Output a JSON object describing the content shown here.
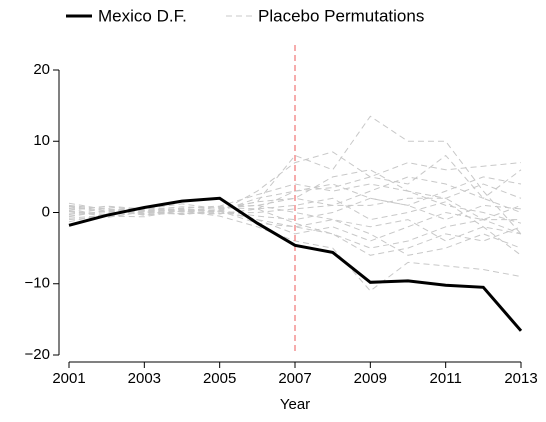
{
  "chart_data": {
    "type": "line",
    "x_label": "Year",
    "x": [
      2001,
      2002,
      2003,
      2004,
      2005,
      2006,
      2007,
      2008,
      2009,
      2010,
      2011,
      2012,
      2013
    ],
    "xlim": [
      2001,
      2013
    ],
    "xticks": [
      2001,
      2003,
      2005,
      2007,
      2009,
      2011,
      2013
    ],
    "ylim": [
      -20,
      20
    ],
    "yticks": [
      {
        "value": -20,
        "label": "−20"
      },
      {
        "value": -10,
        "label": "−10"
      },
      0,
      10,
      20
    ],
    "vline": {
      "x": 2007,
      "color": "#f08080"
    },
    "series": [
      {
        "name": "Mexico D.F.",
        "color": "#000000",
        "values": [
          -1.8,
          -0.4,
          0.7,
          1.6,
          2.0,
          -1.5,
          -4.6,
          -5.6,
          -9.8,
          -9.6,
          -10.2,
          -10.5,
          -16.6
        ]
      },
      {
        "name": "Placebo Permutations",
        "color": "#c8c8c8",
        "dashed": true,
        "lines": [
          [
            0.5,
            0.8,
            0.3,
            0.2,
            0.4,
            1.5,
            8,
            6,
            13.5,
            10,
            10,
            3,
            -3
          ],
          [
            -0.5,
            0.2,
            0.6,
            0.4,
            0.1,
            3,
            7,
            8.5,
            5,
            4,
            8,
            2,
            0
          ],
          [
            1,
            0.5,
            0.2,
            -0.3,
            0.2,
            2,
            3,
            3.5,
            5,
            7,
            6,
            6.5,
            7
          ],
          [
            -1,
            -0.6,
            0.1,
            0.5,
            0.3,
            -1,
            -2,
            -3,
            -5,
            -4,
            -2,
            -1,
            -3
          ],
          [
            0.2,
            -0.3,
            0.4,
            0.8,
            0.6,
            1,
            2,
            1,
            3,
            5,
            4,
            2,
            6
          ],
          [
            -0.3,
            0.6,
            -0.4,
            0.2,
            -0.5,
            -2,
            -4,
            -5,
            -11,
            -7,
            -7.5,
            -8,
            -9
          ],
          [
            0.8,
            0,
            -0.2,
            0.3,
            0.7,
            0.5,
            1,
            2,
            -1,
            0,
            1.5,
            -2,
            -6
          ],
          [
            -0.8,
            -0.4,
            0.3,
            0.1,
            0.3,
            -0.5,
            -1,
            0,
            2,
            1,
            3,
            5,
            4
          ],
          [
            0.3,
            0.9,
            0.5,
            0.2,
            -0.2,
            0.5,
            -1.5,
            -3,
            -6,
            -5,
            -3,
            -4,
            -2
          ],
          [
            -1.3,
            -0.2,
            0.2,
            0.6,
            0.9,
            2.5,
            4,
            3,
            4,
            3,
            1,
            0,
            -1.5
          ],
          [
            0.6,
            -0.7,
            0.1,
            -0.2,
            0.2,
            -1,
            -3,
            -2,
            -4,
            -2,
            0,
            -1,
            1
          ],
          [
            1.3,
            0.4,
            -0.1,
            0.5,
            -0.1,
            0,
            0.5,
            1,
            1,
            2,
            2,
            -1,
            -1
          ],
          [
            -0.2,
            0.1,
            0.5,
            1.2,
            0.5,
            1.5,
            2,
            5,
            6,
            3,
            2,
            4,
            2
          ],
          [
            0.1,
            -0.5,
            -0.6,
            0.3,
            0.2,
            -1.5,
            -2,
            -1,
            -3,
            -6,
            -5,
            -3,
            -5
          ],
          [
            -0.6,
            0.3,
            0.7,
            0.1,
            0.8,
            1,
            0,
            -1,
            -2,
            -1,
            -4,
            -2,
            -3
          ],
          [
            0.9,
            0.2,
            -0.3,
            -0.1,
            -0.2,
            0.5,
            3,
            4,
            2,
            1,
            -1,
            1,
            0.5
          ]
        ]
      }
    ]
  }
}
